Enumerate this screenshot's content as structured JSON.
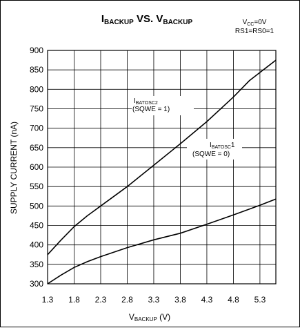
{
  "chart_data": {
    "type": "line",
    "title": {
      "main_prefix": "I",
      "main_prefix_sub": "BACKUP",
      "middle": " VS. V",
      "main_suffix_sub": "BACKUP"
    },
    "conditions": {
      "line1_prefix": "V",
      "line1_sub": "CC",
      "line1_suffix": "=0V",
      "line2": "RS1=RS0=1"
    },
    "xlabel": {
      "prefix": "V",
      "sub": "BACKUP",
      "suffix": " (V)"
    },
    "ylabel": "SUPPLY CURRENT (nA)",
    "xlim": [
      1.3,
      5.6
    ],
    "ylim": [
      300,
      900
    ],
    "x_ticks": [
      "1.3",
      "1.8",
      "2.3",
      "2.8",
      "3.3",
      "3.8",
      "4.3",
      "4.8",
      "5.3"
    ],
    "y_ticks": [
      "300",
      "350",
      "400",
      "450",
      "500",
      "550",
      "600",
      "650",
      "700",
      "750",
      "800",
      "850",
      "900"
    ],
    "grid": true,
    "series": [
      {
        "name_prefix": "I",
        "name_sub": "BATOSC2",
        "name_line2": "(SQWE = 1)",
        "x": [
          1.3,
          1.55,
          1.8,
          2.05,
          2.3,
          2.8,
          3.3,
          3.8,
          4.3,
          4.8,
          5.1,
          5.6
        ],
        "y": [
          375,
          412,
          447,
          475,
          500,
          550,
          605,
          660,
          717,
          780,
          822,
          875
        ]
      },
      {
        "name_prefix": "I",
        "name_sub": "BATOSC",
        "name_suffix": "1",
        "name_line2": "(SQWE = 0)",
        "x": [
          1.3,
          1.55,
          1.8,
          2.05,
          2.3,
          2.8,
          3.3,
          3.8,
          4.3,
          4.8,
          5.3,
          5.6
        ],
        "y": [
          300,
          322,
          342,
          357,
          370,
          393,
          413,
          430,
          453,
          477,
          502,
          518
        ]
      }
    ]
  }
}
